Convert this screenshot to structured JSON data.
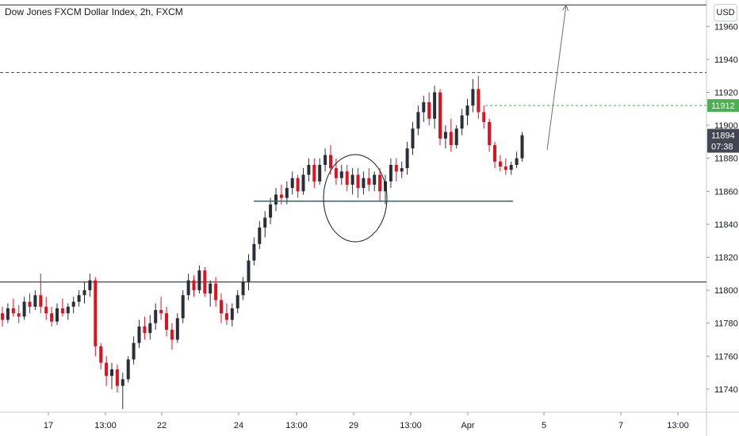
{
  "header": {
    "title": "Dow Jones FXCM Dollar Index, 2h, FXCM",
    "currency": "USD"
  },
  "colors": {
    "up": "#2a2e39",
    "down": "#e0121e",
    "price_badge": "#4caf50",
    "last_badge": "#434651",
    "support_line": "#1f6f6a",
    "level_line": "#555555"
  },
  "chart_data": {
    "type": "candlestick",
    "title": "Dow Jones FXCM Dollar Index, 2h, FXCM",
    "ylim": [
      11726,
      11976
    ],
    "y_ticks": [
      11740,
      11760,
      11780,
      11800,
      11820,
      11840,
      11860,
      11880,
      11900,
      11920,
      11940,
      11960
    ],
    "x_ticks": [
      "17",
      "13:00",
      "22",
      "24",
      "13:00",
      "29",
      "13:00",
      "Apr",
      "5",
      "7",
      "13:00"
    ],
    "price_badges": [
      {
        "value": "11912"
      },
      {
        "value": "11894",
        "countdown": "07:38"
      }
    ],
    "levels": [
      {
        "value": 11973,
        "style": "solid"
      },
      {
        "value": 11932,
        "style": "dashed"
      },
      {
        "value": 11912,
        "style": "dashed-green"
      },
      {
        "value": 11805,
        "style": "solid"
      }
    ],
    "support_segment": {
      "value": 11854
    },
    "projection": {
      "from": 11885,
      "to": 11973
    },
    "candles": [
      [
        11786,
        11790,
        11778,
        11782
      ],
      [
        11782,
        11792,
        11780,
        11789
      ],
      [
        11789,
        11795,
        11784,
        11786
      ],
      [
        11786,
        11791,
        11780,
        11784
      ],
      [
        11784,
        11796,
        11782,
        11793
      ],
      [
        11793,
        11798,
        11786,
        11790
      ],
      [
        11790,
        11800,
        11788,
        11797
      ],
      [
        11797,
        11810,
        11786,
        11790
      ],
      [
        11790,
        11796,
        11782,
        11786
      ],
      [
        11786,
        11790,
        11778,
        11781
      ],
      [
        11781,
        11792,
        11779,
        11789
      ],
      [
        11789,
        11795,
        11784,
        11786
      ],
      [
        11786,
        11792,
        11782,
        11790
      ],
      [
        11790,
        11796,
        11786,
        11793
      ],
      [
        11793,
        11800,
        11790,
        11797
      ],
      [
        11797,
        11805,
        11792,
        11800
      ],
      [
        11800,
        11810,
        11796,
        11806
      ],
      [
        11806,
        11808,
        11760,
        11766
      ],
      [
        11766,
        11768,
        11752,
        11756
      ],
      [
        11756,
        11760,
        11742,
        11748
      ],
      [
        11748,
        11756,
        11740,
        11752
      ],
      [
        11752,
        11755,
        11738,
        11742
      ],
      [
        11742,
        11750,
        11728,
        11746
      ],
      [
        11746,
        11760,
        11744,
        11758
      ],
      [
        11758,
        11772,
        11755,
        11768
      ],
      [
        11768,
        11782,
        11765,
        11778
      ],
      [
        11778,
        11784,
        11770,
        11774
      ],
      [
        11774,
        11785,
        11770,
        11780
      ],
      [
        11780,
        11792,
        11776,
        11788
      ],
      [
        11788,
        11796,
        11782,
        11786
      ],
      [
        11786,
        11790,
        11772,
        11776
      ],
      [
        11776,
        11780,
        11764,
        11770
      ],
      [
        11770,
        11786,
        11768,
        11783
      ],
      [
        11783,
        11800,
        11780,
        11797
      ],
      [
        11797,
        11810,
        11794,
        11806
      ],
      [
        11806,
        11809,
        11796,
        11800
      ],
      [
        11800,
        11815,
        11798,
        11812
      ],
      [
        11812,
        11814,
        11796,
        11798
      ],
      [
        11798,
        11806,
        11790,
        11804
      ],
      [
        11804,
        11808,
        11790,
        11794
      ],
      [
        11794,
        11798,
        11780,
        11786
      ],
      [
        11786,
        11792,
        11779,
        11782
      ],
      [
        11782,
        11792,
        11778,
        11789
      ],
      [
        11789,
        11800,
        11786,
        11797
      ],
      [
        11797,
        11808,
        11794,
        11805
      ],
      [
        11805,
        11822,
        11800,
        11818
      ],
      [
        11818,
        11832,
        11815,
        11828
      ],
      [
        11828,
        11842,
        11825,
        11838
      ],
      [
        11838,
        11848,
        11832,
        11844
      ],
      [
        11844,
        11856,
        11840,
        11852
      ],
      [
        11852,
        11862,
        11848,
        11858
      ],
      [
        11858,
        11864,
        11852,
        11856
      ],
      [
        11856,
        11866,
        11852,
        11862
      ],
      [
        11862,
        11872,
        11858,
        11868
      ],
      [
        11868,
        11870,
        11856,
        11860
      ],
      [
        11860,
        11874,
        11858,
        11870
      ],
      [
        11870,
        11880,
        11866,
        11876
      ],
      [
        11876,
        11880,
        11862,
        11866
      ],
      [
        11866,
        11880,
        11864,
        11876
      ],
      [
        11876,
        11886,
        11872,
        11882
      ],
      [
        11882,
        11888,
        11870,
        11874
      ],
      [
        11874,
        11880,
        11864,
        11868
      ],
      [
        11868,
        11876,
        11864,
        11872
      ],
      [
        11872,
        11876,
        11860,
        11864
      ],
      [
        11864,
        11874,
        11858,
        11870
      ],
      [
        11870,
        11874,
        11856,
        11862
      ],
      [
        11862,
        11872,
        11858,
        11868
      ],
      [
        11868,
        11874,
        11860,
        11864
      ],
      [
        11864,
        11872,
        11860,
        11870
      ],
      [
        11870,
        11874,
        11854,
        11860
      ],
      [
        11860,
        11870,
        11852,
        11866
      ],
      [
        11866,
        11880,
        11862,
        11876
      ],
      [
        11876,
        11880,
        11866,
        11872
      ],
      [
        11872,
        11878,
        11868,
        11874
      ],
      [
        11874,
        11890,
        11870,
        11886
      ],
      [
        11886,
        11902,
        11882,
        11898
      ],
      [
        11898,
        11912,
        11894,
        11908
      ],
      [
        11908,
        11918,
        11902,
        11914
      ],
      [
        11914,
        11920,
        11900,
        11904
      ],
      [
        11904,
        11924,
        11898,
        11920
      ],
      [
        11920,
        11922,
        11888,
        11892
      ],
      [
        11892,
        11900,
        11886,
        11896
      ],
      [
        11896,
        11904,
        11884,
        11888
      ],
      [
        11888,
        11900,
        11886,
        11898
      ],
      [
        11898,
        11910,
        11894,
        11906
      ],
      [
        11906,
        11916,
        11900,
        11912
      ],
      [
        11912,
        11928,
        11908,
        11922
      ],
      [
        11922,
        11930,
        11904,
        11908
      ],
      [
        11908,
        11912,
        11898,
        11902
      ],
      [
        11902,
        11904,
        11884,
        11888
      ],
      [
        11888,
        11890,
        11874,
        11878
      ],
      [
        11878,
        11882,
        11872,
        11875
      ],
      [
        11875,
        11880,
        11870,
        11873
      ],
      [
        11873,
        11878,
        11870,
        11876
      ],
      [
        11876,
        11884,
        11874,
        11880
      ],
      [
        11880,
        11896,
        11878,
        11894
      ]
    ]
  }
}
